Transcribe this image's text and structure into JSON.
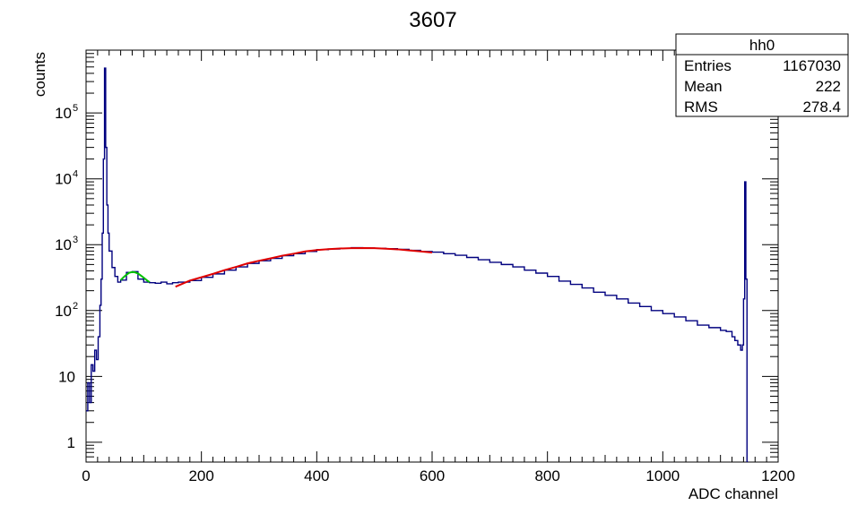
{
  "chart_data": {
    "type": "line",
    "title": "3607",
    "xlabel": "ADC channel",
    "ylabel": "counts",
    "xlim": [
      0,
      1200
    ],
    "ylim": [
      0.5,
      900000
    ],
    "y_scale": "log",
    "grid": false,
    "x_ticks": [
      {
        "value": 0,
        "label": "0"
      },
      {
        "value": 200,
        "label": "200"
      },
      {
        "value": 400,
        "label": "400"
      },
      {
        "value": 600,
        "label": "600"
      },
      {
        "value": 800,
        "label": "800"
      },
      {
        "value": 1000,
        "label": "1000"
      },
      {
        "value": 1200,
        "label": "1200"
      }
    ],
    "y_ticks": [
      {
        "value": 1,
        "base": "1",
        "exp": ""
      },
      {
        "value": 10,
        "base": "10",
        "exp": ""
      },
      {
        "value": 100,
        "base": "10",
        "exp": "2"
      },
      {
        "value": 1000,
        "base": "10",
        "exp": "3"
      },
      {
        "value": 10000,
        "base": "10",
        "exp": "4"
      },
      {
        "value": 100000,
        "base": "10",
        "exp": "5"
      }
    ],
    "series": [
      {
        "color": "#00007f",
        "x": [
          0,
          3,
          6,
          9,
          12,
          15,
          18,
          21,
          24,
          26,
          28,
          30,
          32,
          34,
          36,
          38,
          40,
          45,
          50,
          55,
          60,
          70,
          80,
          90,
          100,
          110,
          120,
          130,
          140,
          150,
          160,
          180,
          200,
          220,
          240,
          260,
          280,
          300,
          320,
          340,
          360,
          380,
          400,
          420,
          440,
          460,
          480,
          500,
          520,
          540,
          560,
          580,
          600,
          620,
          640,
          660,
          680,
          700,
          720,
          740,
          760,
          780,
          800,
          820,
          840,
          860,
          880,
          900,
          920,
          940,
          960,
          980,
          1000,
          1020,
          1040,
          1060,
          1080,
          1100,
          1110,
          1120,
          1125,
          1130,
          1135,
          1138,
          1140,
          1142,
          1144,
          1146,
          1148
        ],
        "y": [
          3,
          8,
          4,
          15,
          12,
          25,
          18,
          40,
          120,
          300,
          1500,
          20000,
          480000,
          30000,
          4000,
          1500,
          800,
          450,
          330,
          270,
          290,
          380,
          390,
          300,
          270,
          265,
          260,
          270,
          255,
          265,
          270,
          285,
          320,
          360,
          410,
          460,
          520,
          570,
          620,
          680,
          730,
          790,
          840,
          860,
          880,
          900,
          890,
          880,
          870,
          850,
          820,
          790,
          770,
          730,
          690,
          640,
          590,
          540,
          500,
          460,
          410,
          370,
          330,
          280,
          250,
          220,
          190,
          170,
          150,
          130,
          115,
          100,
          90,
          80,
          70,
          60,
          55,
          50,
          48,
          40,
          35,
          30,
          25,
          30,
          150,
          9000,
          300,
          0.5,
          0.5
        ]
      }
    ],
    "fits": [
      {
        "color": "#00c000",
        "x": [
          60,
          65,
          70,
          75,
          80,
          85,
          90,
          95,
          100,
          105,
          110
        ],
        "y": [
          290,
          320,
          350,
          375,
          385,
          380,
          365,
          340,
          315,
          290,
          270
        ]
      },
      {
        "color": "#e00000",
        "x": [
          155,
          180,
          200,
          220,
          240,
          260,
          280,
          300,
          320,
          340,
          360,
          380,
          400,
          420,
          440,
          460,
          480,
          500,
          520,
          540,
          560,
          580,
          600
        ],
        "y": [
          230,
          285,
          320,
          360,
          410,
          460,
          520,
          570,
          620,
          680,
          730,
          790,
          830,
          855,
          875,
          885,
          890,
          885,
          870,
          850,
          820,
          790,
          760
        ]
      }
    ]
  },
  "stats_box": {
    "title": "hh0",
    "rows": [
      {
        "label": "Entries",
        "value": "1167030"
      },
      {
        "label": "Mean",
        "value": "222"
      },
      {
        "label": "RMS",
        "value": "278.4"
      }
    ]
  }
}
